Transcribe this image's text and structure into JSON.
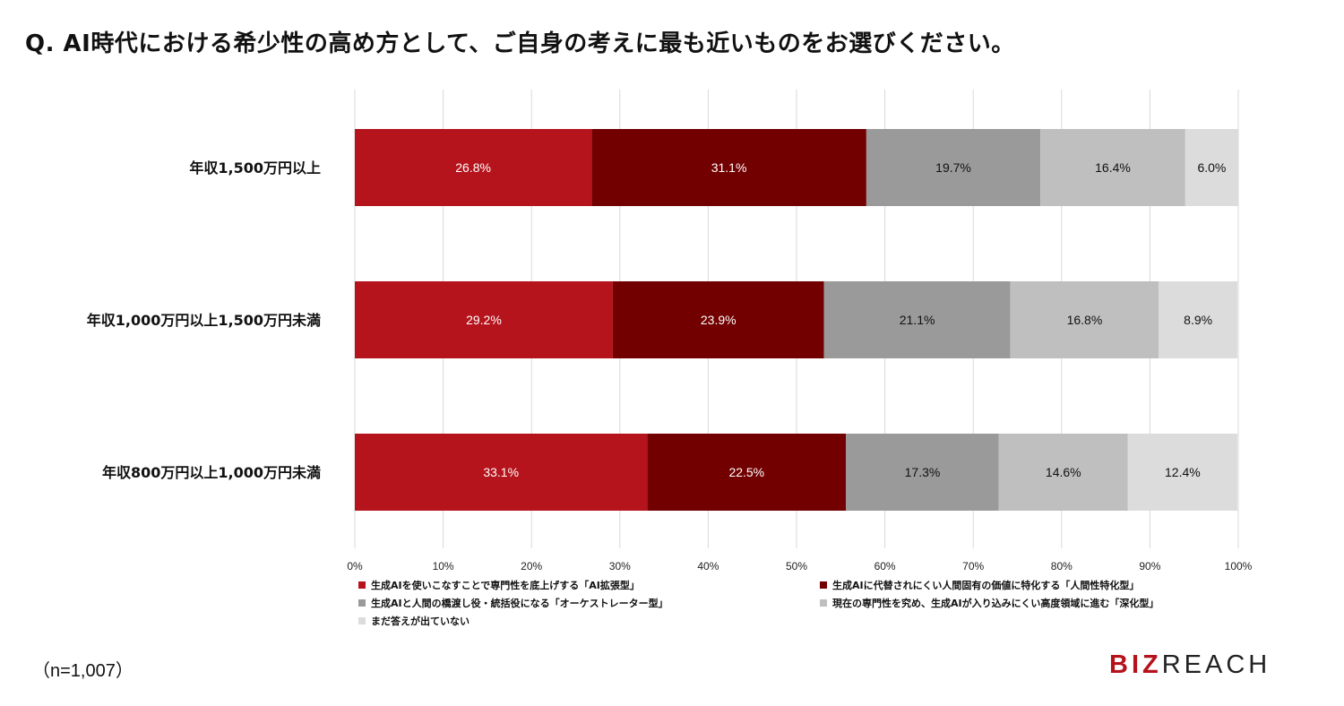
{
  "title": "Q. AI時代における希少性の高め方として、ご自身の考えに最も近いものをお選びください。",
  "note": "（n=1,007）",
  "logo": {
    "part1": "BIZ",
    "part2": "REACH"
  },
  "colors": [
    "#b5141c",
    "#730000",
    "#9a9a9a",
    "#bfbfbf",
    "#dcdcdc"
  ],
  "chart_data": {
    "type": "bar",
    "orientation": "horizontal",
    "stacked": true,
    "categories": [
      "年収1,500万円以上",
      "年収1,000万円以上1,500万円未満",
      "年収800万円以上1,000万円未満"
    ],
    "series": [
      {
        "name": "生成AIを使いこなすことで専門性を底上げする「AI拡張型」",
        "values": [
          26.8,
          29.2,
          33.1
        ]
      },
      {
        "name": "生成AIに代替されにくい人間固有の価値に特化する「人間性特化型」",
        "values": [
          31.1,
          23.9,
          22.5
        ]
      },
      {
        "name": "生成AIと人間の橋渡し役・統括役になる「オーケストレーター型」",
        "values": [
          19.7,
          21.1,
          17.3
        ]
      },
      {
        "name": "現在の専門性を究め、生成AIが入り込みにくい高度領域に進む「深化型」",
        "values": [
          16.4,
          16.8,
          14.6
        ]
      },
      {
        "name": "まだ答えが出ていない",
        "values": [
          6.0,
          8.9,
          12.4
        ]
      }
    ],
    "value_labels": [
      [
        "26.8%",
        "31.1%",
        "19.7%",
        "16.4%",
        "6.0%"
      ],
      [
        "29.2%",
        "23.9%",
        "21.1%",
        "16.8%",
        "8.9%"
      ],
      [
        "33.1%",
        "22.5%",
        "17.3%",
        "14.6%",
        "12.4%"
      ]
    ],
    "xlim": [
      0,
      100
    ],
    "xticks": [
      "0%",
      "10%",
      "20%",
      "30%",
      "40%",
      "50%",
      "60%",
      "70%",
      "80%",
      "90%",
      "100%"
    ],
    "grid": true,
    "legend_position": "bottom"
  }
}
